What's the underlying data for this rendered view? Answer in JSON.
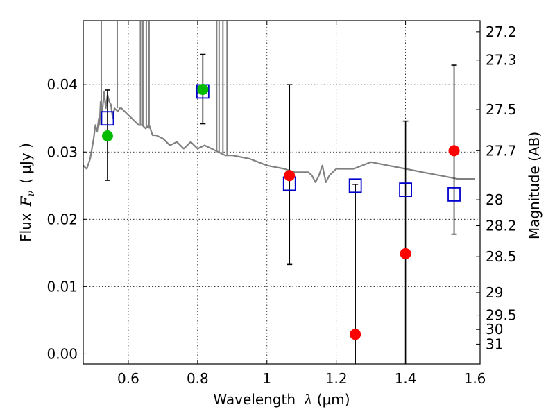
{
  "chart_data": {
    "type": "scatter",
    "xlabel": "Wavelength",
    "xlabel_symbol": "λ",
    "xlabel_unit": "(μm)",
    "ylabel": "Flux",
    "ylabel_symbol": "F",
    "ylabel_subscript": "ν",
    "ylabel_unit": "( μJy )",
    "y2label": "Magnitude (AB)",
    "xlim": [
      0.47,
      1.615
    ],
    "ylim": [
      -0.0015,
      0.0495
    ],
    "xticks": [
      0.6,
      0.8,
      1.0,
      1.2,
      1.4,
      1.6
    ],
    "xtick_labels": [
      "0.6",
      "0.8",
      "1",
      "1.2",
      "1.4",
      "1.6"
    ],
    "yticks": [
      0.0,
      0.01,
      0.02,
      0.03,
      0.04
    ],
    "ytick_labels": [
      "0.00",
      "0.01",
      "0.02",
      "0.03",
      "0.04"
    ],
    "magnitude_ticks": [
      27.2,
      27.3,
      27.5,
      27.7,
      28,
      28.2,
      28.5,
      29,
      29.5,
      30,
      31
    ],
    "magnitude_tick_labels": [
      "27.2",
      "27.3",
      "27.5",
      "27.7",
      "28",
      "28.2",
      "28.5",
      "29",
      "29.5",
      "30",
      "31"
    ],
    "grid": true,
    "series": [
      {
        "name": "SED model",
        "kind": "line",
        "color": "#808080",
        "x": [
          0.47,
          0.48,
          0.49,
          0.5,
          0.505,
          0.51,
          0.515,
          0.517,
          0.52,
          0.525,
          0.53,
          0.535,
          0.54,
          0.545,
          0.55,
          0.555,
          0.56,
          0.57,
          0.575,
          0.58,
          0.59,
          0.6,
          0.61,
          0.62,
          0.63,
          0.64,
          0.65,
          0.66,
          0.67,
          0.68,
          0.7,
          0.72,
          0.74,
          0.76,
          0.78,
          0.8,
          0.82,
          0.84,
          0.86,
          0.88,
          0.9,
          0.95,
          1.0,
          1.05,
          1.08,
          1.1,
          1.12,
          1.13,
          1.14,
          1.15,
          1.16,
          1.17,
          1.18,
          1.2,
          1.25,
          1.3,
          1.35,
          1.4,
          1.45,
          1.5,
          1.55,
          1.6
        ],
        "y": [
          0.028,
          0.0275,
          0.029,
          0.032,
          0.034,
          0.033,
          0.035,
          0.034,
          0.0375,
          0.036,
          0.039,
          0.0365,
          0.0385,
          0.0375,
          0.037,
          0.035,
          0.0365,
          0.036,
          0.0365,
          0.0365,
          0.036,
          0.0355,
          0.035,
          0.0345,
          0.034,
          0.034,
          0.0335,
          0.034,
          0.0325,
          0.0325,
          0.032,
          0.031,
          0.0315,
          0.0305,
          0.0315,
          0.0305,
          0.031,
          0.0305,
          0.03,
          0.0295,
          0.0295,
          0.029,
          0.028,
          0.0275,
          0.027,
          0.027,
          0.027,
          0.0265,
          0.0255,
          0.0265,
          0.028,
          0.0255,
          0.0265,
          0.0275,
          0.0275,
          0.0285,
          0.028,
          0.0275,
          0.027,
          0.0265,
          0.026,
          0.026
        ]
      },
      {
        "name": "Model photometry",
        "kind": "open-square",
        "color": "#0000cc",
        "x": [
          0.54,
          0.815,
          1.065,
          1.255,
          1.4,
          1.54
        ],
        "y": [
          0.035,
          0.039,
          0.0253,
          0.025,
          0.0244,
          0.0237
        ]
      },
      {
        "name": "Detections",
        "kind": "filled-circle",
        "color": "#00bb00",
        "x": [
          0.54,
          0.815
        ],
        "y": [
          0.0324,
          0.0393
        ]
      },
      {
        "name": "Upper-limit measurements",
        "kind": "filled-circle",
        "color": "#ff0000",
        "x": [
          1.065,
          1.255,
          1.4,
          1.54
        ],
        "y": [
          0.0265,
          0.0029,
          0.0149,
          0.0302
        ]
      },
      {
        "name": "Error bars",
        "kind": "errorbar",
        "color": "#000000",
        "x": [
          0.54,
          0.815,
          1.065,
          1.255,
          1.4,
          1.54
        ],
        "y_low": [
          0.0258,
          0.0342,
          0.0133,
          -0.0015,
          -0.0015,
          0.0178
        ],
        "y_high": [
          0.0392,
          0.0445,
          0.04,
          0.0252,
          0.0346,
          0.0429
        ],
        "cap_low": [
          true,
          true,
          true,
          false,
          false,
          true
        ]
      }
    ],
    "emission_lines": [
      {
        "x": 0.522,
        "y_top": 0.0495,
        "y_base": 0.0345
      },
      {
        "x": 0.568,
        "y_top": 0.0495,
        "y_base": 0.0365
      },
      {
        "x": 0.635,
        "y_top": 0.0495,
        "y_base": 0.034
      },
      {
        "x": 0.642,
        "y_top": 0.0495,
        "y_base": 0.034
      },
      {
        "x": 0.652,
        "y_top": 0.0495,
        "y_base": 0.0335
      },
      {
        "x": 0.66,
        "y_top": 0.0495,
        "y_base": 0.0335
      },
      {
        "x": 0.855,
        "y_top": 0.0495,
        "y_base": 0.03
      },
      {
        "x": 0.862,
        "y_top": 0.0495,
        "y_base": 0.03
      },
      {
        "x": 0.873,
        "y_top": 0.0495,
        "y_base": 0.0298
      },
      {
        "x": 0.885,
        "y_top": 0.0495,
        "y_base": 0.0296
      }
    ]
  }
}
